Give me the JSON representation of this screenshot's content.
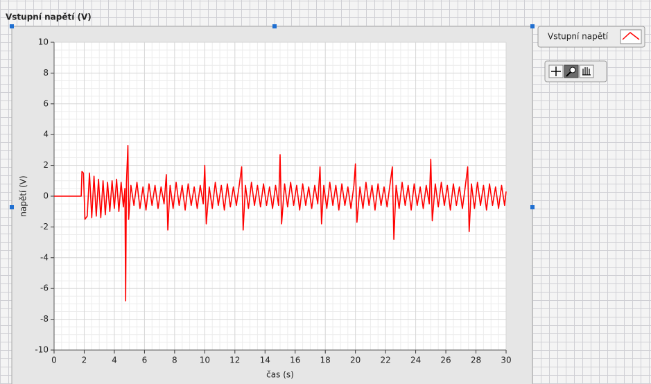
{
  "chart_data": {
    "type": "line",
    "title": "Vstupní napětí (V)",
    "x_label": "čas (s)",
    "y_label": "napětí (V)",
    "xlim": [
      0,
      30
    ],
    "xticks": [
      0,
      2,
      4,
      6,
      8,
      10,
      12,
      14,
      16,
      18,
      20,
      22,
      24,
      26,
      28,
      30
    ],
    "ylim": [
      -10,
      10
    ],
    "yticks": [
      -10,
      -8,
      -6,
      -4,
      -2,
      0,
      2,
      4,
      6,
      8,
      10
    ],
    "grid": true,
    "legend": "top-right",
    "x": [
      0,
      1.8,
      1.85,
      1.95,
      2.05,
      2.2,
      2.35,
      2.5,
      2.65,
      2.8,
      2.95,
      3.1,
      3.25,
      3.4,
      3.55,
      3.7,
      3.85,
      4.0,
      4.15,
      4.3,
      4.45,
      4.6,
      4.7,
      4.75,
      4.8,
      4.9,
      4.95,
      5.1,
      5.3,
      5.5,
      5.7,
      5.9,
      6.1,
      6.3,
      6.5,
      6.7,
      6.9,
      7.1,
      7.3,
      7.45,
      7.55,
      7.7,
      7.9,
      8.1,
      8.3,
      8.5,
      8.7,
      8.9,
      9.1,
      9.3,
      9.5,
      9.7,
      9.9,
      10.0,
      10.1,
      10.3,
      10.5,
      10.7,
      10.9,
      11.1,
      11.3,
      11.5,
      11.7,
      11.9,
      12.1,
      12.3,
      12.45,
      12.55,
      12.7,
      12.9,
      13.1,
      13.3,
      13.5,
      13.7,
      13.9,
      14.1,
      14.3,
      14.5,
      14.7,
      14.9,
      15.0,
      15.1,
      15.3,
      15.5,
      15.7,
      15.9,
      16.1,
      16.3,
      16.5,
      16.7,
      16.9,
      17.1,
      17.3,
      17.5,
      17.65,
      17.75,
      17.9,
      18.1,
      18.3,
      18.5,
      18.7,
      18.9,
      19.1,
      19.3,
      19.5,
      19.7,
      19.9,
      20.0,
      20.1,
      20.3,
      20.5,
      20.7,
      20.9,
      21.1,
      21.3,
      21.5,
      21.7,
      21.9,
      22.1,
      22.3,
      22.45,
      22.55,
      22.7,
      22.9,
      23.1,
      23.3,
      23.5,
      23.7,
      23.9,
      24.1,
      24.3,
      24.5,
      24.7,
      24.9,
      25.0,
      25.1,
      25.3,
      25.5,
      25.7,
      25.9,
      26.1,
      26.3,
      26.5,
      26.7,
      26.9,
      27.1,
      27.3,
      27.45,
      27.55,
      27.7,
      27.9,
      28.1,
      28.3,
      28.5,
      28.7,
      28.9,
      29.1,
      29.3,
      29.5,
      29.7,
      29.9,
      30
    ],
    "series": [
      {
        "name": "Vstupní napětí",
        "color": "#ff0000",
        "values": [
          0,
          0,
          1.6,
          1.5,
          -1.5,
          -1.3,
          1.5,
          -1.4,
          1.3,
          -1.3,
          1.1,
          -1.4,
          1.0,
          -1.2,
          0.9,
          -1.0,
          1.0,
          -0.8,
          1.1,
          -1.0,
          0.9,
          -0.7,
          0.5,
          -6.8,
          0.8,
          3.3,
          -1.5,
          0.7,
          -0.6,
          0.9,
          -0.8,
          0.6,
          -0.9,
          0.8,
          -0.6,
          0.7,
          -0.8,
          0.6,
          -0.5,
          1.4,
          -2.2,
          0.7,
          -0.8,
          0.9,
          -0.6,
          0.7,
          -0.9,
          0.8,
          -0.6,
          0.6,
          -0.8,
          0.7,
          -0.5,
          2.0,
          -1.8,
          0.6,
          -0.8,
          0.9,
          -0.6,
          0.7,
          -0.9,
          0.8,
          -0.7,
          0.6,
          -0.6,
          0.8,
          1.9,
          -2.2,
          0.7,
          -0.8,
          0.9,
          -0.6,
          0.7,
          -0.7,
          0.8,
          -0.6,
          0.6,
          -0.8,
          0.7,
          -0.6,
          2.7,
          -1.8,
          0.8,
          -0.7,
          0.9,
          -0.6,
          0.7,
          -0.9,
          0.8,
          -0.6,
          0.6,
          -0.8,
          0.7,
          -0.5,
          1.9,
          -1.8,
          0.7,
          -0.8,
          0.9,
          -0.6,
          0.7,
          -0.9,
          0.8,
          -0.6,
          0.6,
          -0.8,
          0.7,
          2.1,
          -1.7,
          0.6,
          -0.8,
          0.9,
          -0.6,
          0.7,
          -0.9,
          0.8,
          -0.6,
          0.6,
          -0.7,
          0.8,
          1.9,
          -2.8,
          0.7,
          -0.8,
          0.9,
          -0.6,
          0.7,
          -0.9,
          0.8,
          -0.6,
          0.6,
          -0.8,
          0.7,
          -0.5,
          2.4,
          -1.6,
          0.8,
          -0.7,
          0.9,
          -0.6,
          0.7,
          -0.9,
          0.8,
          -0.6,
          0.6,
          -0.8,
          0.7,
          1.9,
          -2.3,
          0.8,
          -0.8,
          0.9,
          -0.6,
          0.7,
          -0.9,
          0.8,
          -0.6,
          0.6,
          -0.8,
          0.7,
          -0.6,
          0.3
        ]
      }
    ]
  }
}
